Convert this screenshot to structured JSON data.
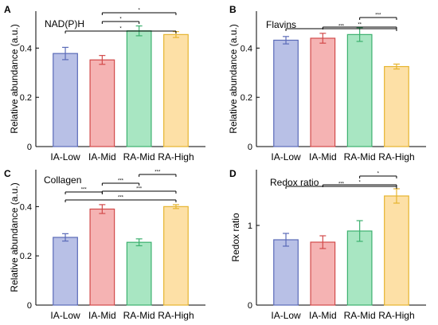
{
  "chart_data": [
    {
      "panel_label": "A",
      "type": "bar",
      "title": "NAD(P)H",
      "xlabel": "",
      "ylabel": "Relative abundance (a.u.)",
      "categories": [
        "IA-Low",
        "IA-Mid",
        "RA-Mid",
        "RA-High"
      ],
      "values": [
        0.378,
        0.352,
        0.47,
        0.455
      ],
      "errors": [
        0.025,
        0.018,
        0.02,
        0.012
      ],
      "ylim": [
        0,
        0.55
      ],
      "yticks": [
        0,
        0.2,
        0.4
      ],
      "ytick_labels": [
        "0",
        "0.2",
        "0.4"
      ],
      "colors": [
        "#b8c0e6",
        "#f5b3b3",
        "#a8e6c2",
        "#fde0a6"
      ],
      "edge_colors": [
        "#5b6bb8",
        "#d24a4a",
        "#3cb06e",
        "#e6b530"
      ],
      "significance": [
        {
          "from": 1,
          "to": 3,
          "label": "*"
        },
        {
          "from": 1,
          "to": 2,
          "label": "*"
        },
        {
          "from": 0,
          "to": 3,
          "label": "*"
        }
      ],
      "grid": false
    },
    {
      "panel_label": "B",
      "type": "bar",
      "title": "Flavins",
      "xlabel": "",
      "ylabel": "Relative abundance (a.u.)",
      "categories": [
        "IA-Low",
        "IA-Mid",
        "RA-Mid",
        "RA-High"
      ],
      "values": [
        0.432,
        0.44,
        0.455,
        0.325
      ],
      "errors": [
        0.015,
        0.02,
        0.028,
        0.01
      ],
      "ylim": [
        0,
        0.55
      ],
      "yticks": [
        0,
        0.2,
        0.4
      ],
      "ytick_labels": [
        "0",
        "0.2",
        "0.4"
      ],
      "colors": [
        "#b8c0e6",
        "#f5b3b3",
        "#a8e6c2",
        "#fde0a6"
      ],
      "edge_colors": [
        "#5b6bb8",
        "#d24a4a",
        "#3cb06e",
        "#e6b530"
      ],
      "significance": [
        {
          "from": 2,
          "to": 3,
          "label": "***"
        },
        {
          "from": 1,
          "to": 3,
          "label": "**"
        },
        {
          "from": 0,
          "to": 3,
          "label": "***"
        }
      ],
      "grid": false
    },
    {
      "panel_label": "C",
      "type": "bar",
      "title": "Collagen",
      "xlabel": "",
      "ylabel": "Relative abundance (a.u.)",
      "categories": [
        "IA-Low",
        "IA-Mid",
        "RA-Mid",
        "RA-High"
      ],
      "values": [
        0.275,
        0.39,
        0.255,
        0.4
      ],
      "errors": [
        0.015,
        0.018,
        0.014,
        0.008
      ],
      "ylim": [
        0,
        0.55
      ],
      "yticks": [
        0,
        0.2,
        0.4
      ],
      "ytick_labels": [
        "0",
        "0.2",
        "0.4"
      ],
      "colors": [
        "#b8c0e6",
        "#f5b3b3",
        "#a8e6c2",
        "#fde0a6"
      ],
      "edge_colors": [
        "#5b6bb8",
        "#d24a4a",
        "#3cb06e",
        "#e6b530"
      ],
      "significance": [
        {
          "from": 2,
          "to": 3,
          "label": "***"
        },
        {
          "from": 1,
          "to": 2,
          "label": "***"
        },
        {
          "from": 1,
          "to": 3,
          "label": "***"
        },
        {
          "from": 0,
          "to": 1,
          "label": "***"
        },
        {
          "from": 0,
          "to": 3,
          "label": "***"
        }
      ],
      "grid": false
    },
    {
      "panel_label": "D",
      "type": "bar",
      "title": "Redox ratio",
      "xlabel": "",
      "ylabel": "Redox ratio",
      "categories": [
        "IA-Low",
        "IA-Mid",
        "RA-Mid",
        "RA-High"
      ],
      "values": [
        0.82,
        0.79,
        0.93,
        1.37
      ],
      "errors": [
        0.08,
        0.08,
        0.13,
        0.09
      ],
      "ylim": [
        0,
        1.7
      ],
      "yticks": [
        0,
        1
      ],
      "ytick_labels": [
        "0",
        "1"
      ],
      "colors": [
        "#b8c0e6",
        "#f5b3b3",
        "#a8e6c2",
        "#fde0a6"
      ],
      "edge_colors": [
        "#5b6bb8",
        "#d24a4a",
        "#3cb06e",
        "#e6b530"
      ],
      "significance": [
        {
          "from": 2,
          "to": 3,
          "label": "*"
        },
        {
          "from": 1,
          "to": 3,
          "label": "*"
        },
        {
          "from": 0,
          "to": 3,
          "label": "***"
        }
      ],
      "grid": false
    }
  ]
}
